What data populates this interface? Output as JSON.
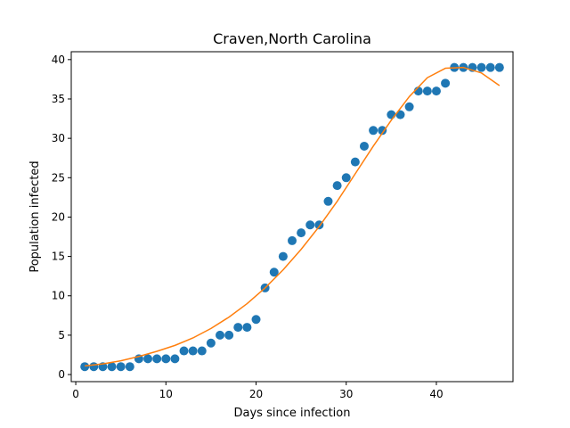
{
  "chart_data": {
    "type": "scatter",
    "title": "Craven,North Carolina",
    "xlabel": "Days since infection",
    "ylabel": "Population infected",
    "xlim": [
      -0.5,
      48.5
    ],
    "ylim": [
      -0.9,
      41.0
    ],
    "xticks": [
      0,
      10,
      20,
      30,
      40
    ],
    "yticks": [
      0,
      5,
      10,
      15,
      20,
      25,
      30,
      35,
      40
    ],
    "grid": false,
    "colors": {
      "points": "#1f77b4",
      "fit": "#ff7f0e"
    },
    "series": [
      {
        "kind": "scatter",
        "x": [
          1,
          2,
          3,
          4,
          5,
          6,
          7,
          8,
          9,
          10,
          11,
          12,
          13,
          14,
          15,
          16,
          17,
          18,
          19,
          20,
          21,
          22,
          23,
          24,
          25,
          26,
          27,
          28,
          29,
          30,
          31,
          32,
          33,
          34,
          35,
          36,
          37,
          38,
          39,
          40,
          41,
          42,
          43,
          44,
          45,
          46,
          47
        ],
        "y": [
          1,
          1,
          1,
          1,
          1,
          1,
          2,
          2,
          2,
          2,
          2,
          3,
          3,
          3,
          4,
          5,
          5,
          6,
          6,
          7,
          11,
          13,
          15,
          17,
          18,
          19,
          19,
          22,
          24,
          25,
          27,
          29,
          31,
          31,
          33,
          33,
          34,
          36,
          36,
          36,
          37,
          39,
          39,
          39,
          39,
          39,
          39
        ]
      },
      {
        "kind": "line",
        "x": [
          1,
          3,
          5,
          7,
          9,
          11,
          13,
          15,
          17,
          19,
          21,
          23,
          25,
          27,
          29,
          31,
          33,
          35,
          37,
          39,
          41,
          43,
          45,
          47
        ],
        "y": [
          1.1,
          1.35,
          1.75,
          2.3,
          2.95,
          3.7,
          4.65,
          5.85,
          7.3,
          9.0,
          11.0,
          13.3,
          15.9,
          18.8,
          22.0,
          25.5,
          29.0,
          32.3,
          35.3,
          37.7,
          38.9,
          39.0,
          38.3,
          36.7
        ]
      }
    ]
  }
}
